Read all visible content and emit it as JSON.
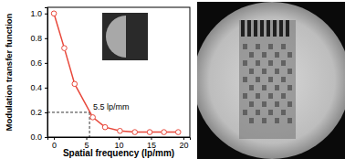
{
  "chart_data": {
    "type": "line",
    "x_label": "Spatial frequency (lp/mm)",
    "y_label": "Modulation transfer function",
    "x": [
      0,
      1.6,
      3.2,
      6.0,
      7.9,
      10.2,
      12.5,
      14.8,
      17.0,
      19.2
    ],
    "series": [
      {
        "color": "#e8473a",
        "marker": "circle",
        "values": [
          1.0,
          0.72,
          0.43,
          0.16,
          0.08,
          0.05,
          0.04,
          0.04,
          0.04,
          0.04
        ]
      }
    ],
    "xlim": [
      -1,
      21
    ],
    "ylim": [
      0,
      1.05
    ],
    "xticks": [
      0,
      5,
      10,
      15,
      20
    ],
    "yticks": [
      {
        "value": 0,
        "label": "0.0"
      },
      {
        "value": 0.2,
        "label": "0.2"
      },
      {
        "value": 0.4,
        "label": "0.4"
      },
      {
        "value": 0.6,
        "label": "0.6"
      },
      {
        "value": 0.8,
        "label": "0.8"
      },
      {
        "value": 1.0,
        "label": "1.0"
      }
    ],
    "grid": false,
    "annotations": [
      {
        "text": "5.5 lp/mm",
        "x": 5.5,
        "y": 0.2
      }
    ]
  }
}
